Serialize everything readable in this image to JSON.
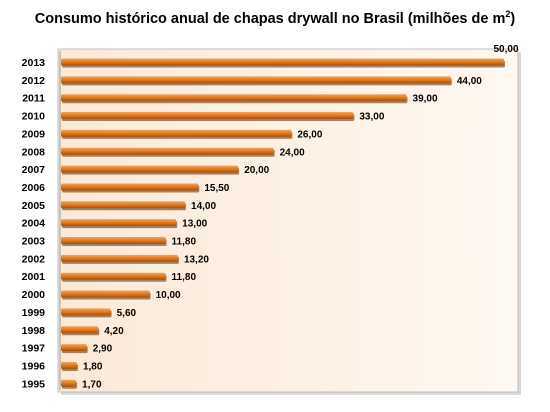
{
  "chart_data": {
    "type": "bar",
    "orientation": "horizontal",
    "title": "Consumo histórico anual de chapas drywall no Brasil (milhões de m",
    "title_superscript": "2",
    "title_close": ")",
    "categories": [
      "2013",
      "2012",
      "2011",
      "2010",
      "2009",
      "2008",
      "2007",
      "2006",
      "2005",
      "2004",
      "2003",
      "2002",
      "2001",
      "2000",
      "1999",
      "1998",
      "1997",
      "1996",
      "1995"
    ],
    "values": [
      50.0,
      44.0,
      39.0,
      33.0,
      26.0,
      24.0,
      20.0,
      15.5,
      14.0,
      13.0,
      11.8,
      13.2,
      11.8,
      10.0,
      5.6,
      4.2,
      2.9,
      1.8,
      1.7
    ],
    "data_labels": [
      "50,00",
      "44,00",
      "39,00",
      "33,00",
      "26,00",
      "24,00",
      "20,00",
      "15,50",
      "14,00",
      "13,00",
      "11,80",
      "13,20",
      "11,80",
      "10,00",
      "5,60",
      "4,20",
      "2,90",
      "1,80",
      "1,70"
    ],
    "xlim": [
      0,
      50
    ],
    "grid": false,
    "legend": "none",
    "colors": {
      "bar_light": "#f4a35a",
      "bar_mid": "#e07a1f",
      "bar_dark": "#a34f0c",
      "plot_bg_left": "#fbe9d7",
      "plot_bg_right": "#fff8f1"
    }
  }
}
